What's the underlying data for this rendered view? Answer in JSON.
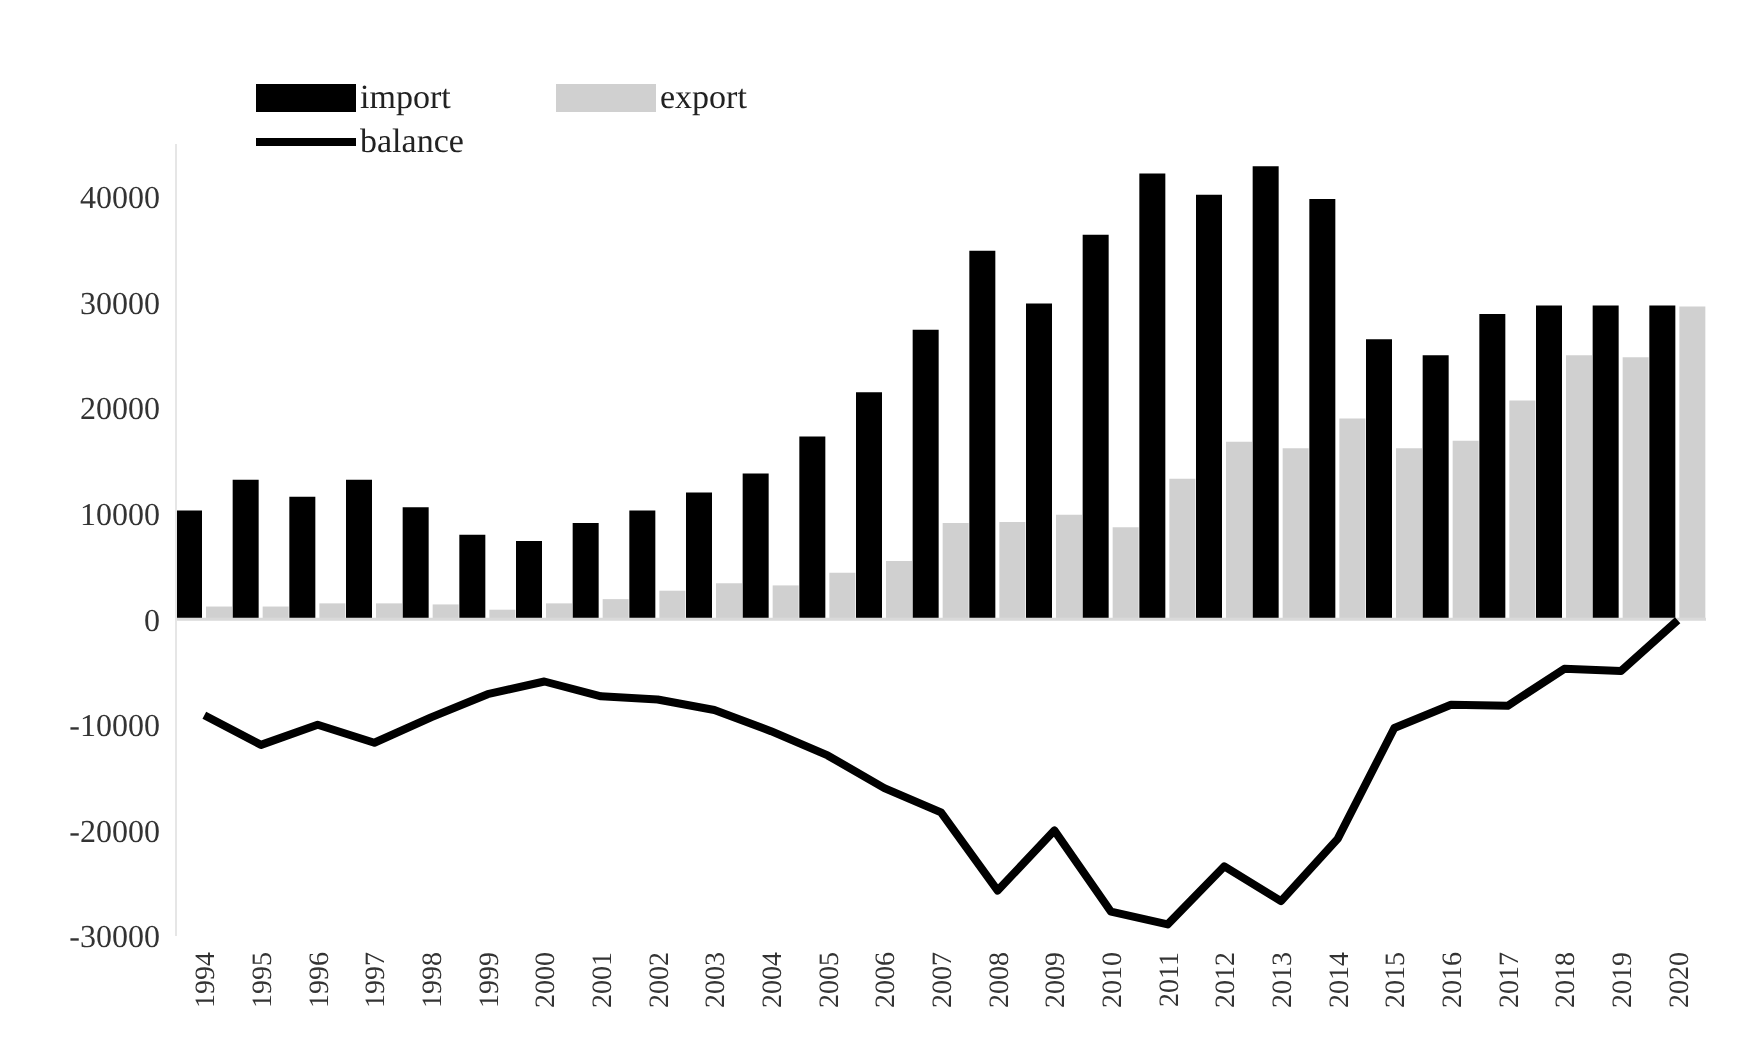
{
  "chart_data": {
    "type": "bar",
    "categories": [
      "1994",
      "1995",
      "1996",
      "1997",
      "1998",
      "1999",
      "2000",
      "2001",
      "2002",
      "2003",
      "2004",
      "2005",
      "2006",
      "2007",
      "2008",
      "2009",
      "2010",
      "2011",
      "2012",
      "2013",
      "2014",
      "2015",
      "2016",
      "2017",
      "2018",
      "2019",
      "2020"
    ],
    "series": [
      {
        "name": "import",
        "color": "#000000",
        "values": [
          10300,
          13200,
          11600,
          13200,
          10600,
          8000,
          7400,
          9100,
          10300,
          12000,
          13800,
          17300,
          21500,
          27400,
          34900,
          29900,
          36400,
          42200,
          40200,
          42900,
          39800,
          26500,
          25000,
          28900,
          29700,
          29700,
          29700
        ]
      },
      {
        "name": "export",
        "color": "#d0d0d0",
        "values": [
          1200,
          1200,
          1500,
          1500,
          1400,
          900,
          1500,
          1900,
          2700,
          3400,
          3200,
          4400,
          5500,
          9100,
          9200,
          9900,
          8700,
          13300,
          16800,
          16200,
          19000,
          16200,
          16900,
          20700,
          25000,
          24800,
          29600
        ]
      },
      {
        "name": "balance",
        "type": "line",
        "color": "#000000",
        "values": [
          -9100,
          -11900,
          -10000,
          -11700,
          -9300,
          -7100,
          -5900,
          -7300,
          -7600,
          -8600,
          -10600,
          -12900,
          -16000,
          -18300,
          -25700,
          -20000,
          -27700,
          -28900,
          -23400,
          -26700,
          -20800,
          -10300,
          -8100,
          -8200,
          -4700,
          -4900,
          -100
        ]
      }
    ],
    "ylim": [
      -30000,
      45000
    ],
    "yticks": [
      -30000,
      -20000,
      -10000,
      0,
      10000,
      20000,
      30000,
      40000
    ],
    "ref_lines": [
      {
        "axis": "y",
        "value": 0,
        "color": "#d9d9d9"
      }
    ],
    "grid": false,
    "legend": "top left",
    "marker": "none"
  }
}
